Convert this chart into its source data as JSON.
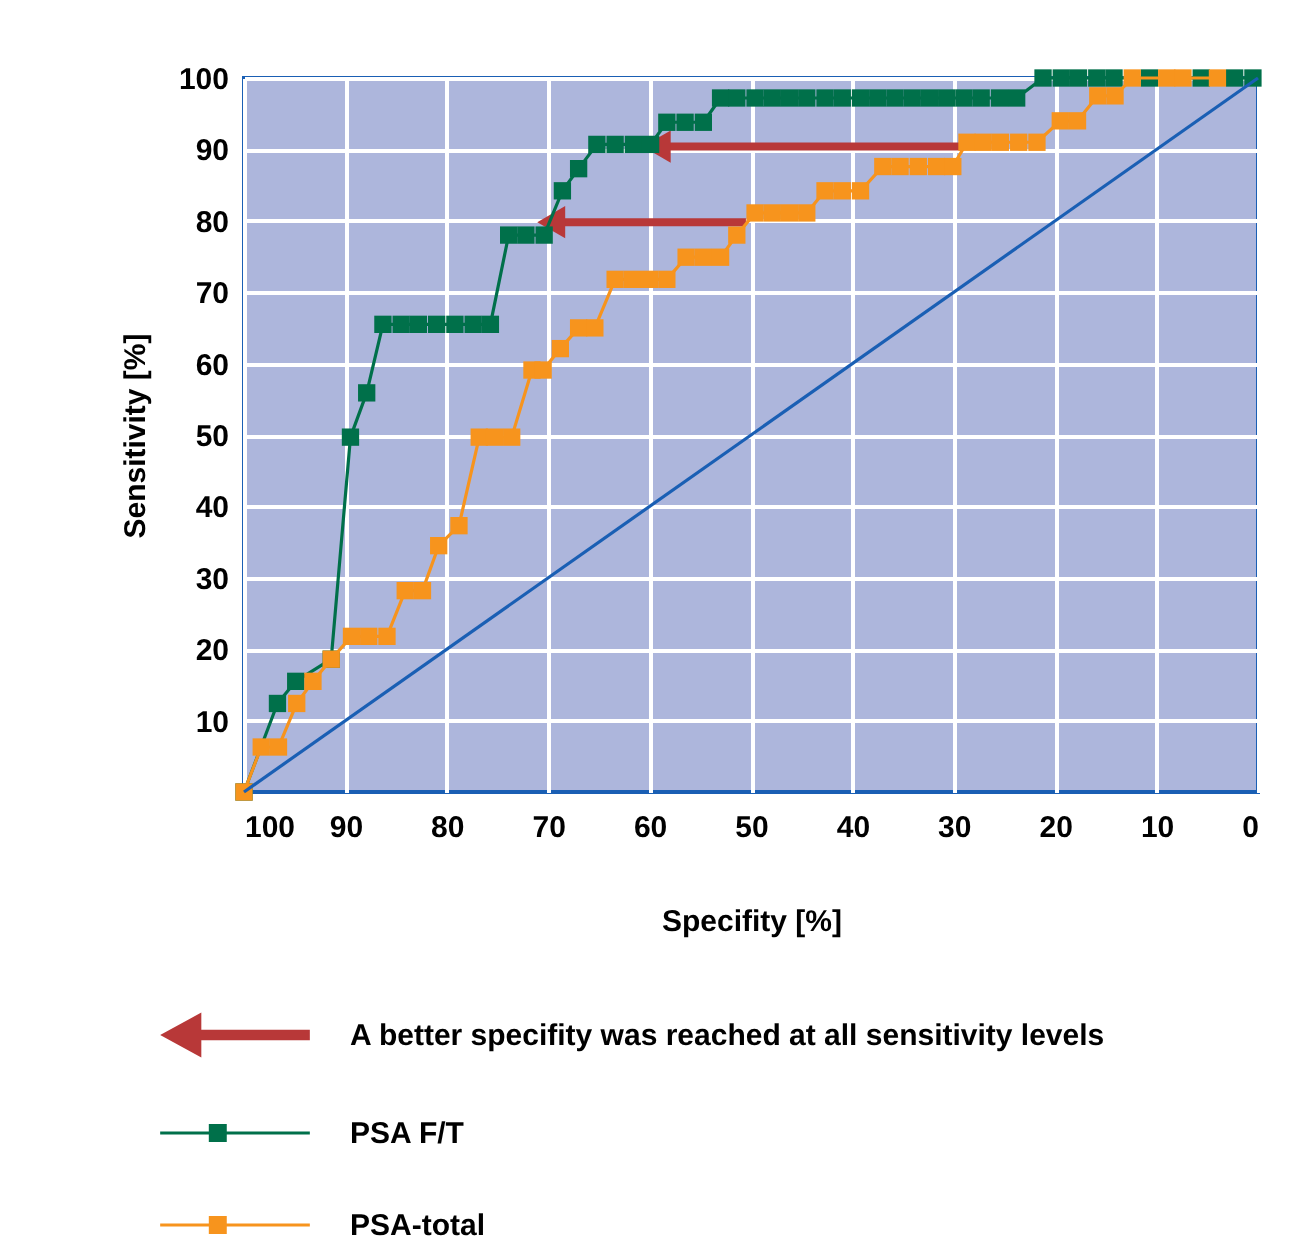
{
  "chart_data": {
    "type": "line",
    "xlabel": "Specifity [%]",
    "ylabel": "Sensitivity [%]",
    "xlim": [
      100,
      0
    ],
    "xticks": [
      100,
      90,
      80,
      70,
      60,
      50,
      40,
      30,
      20,
      10,
      0
    ],
    "ylim": [
      0,
      100
    ],
    "yticks": [
      10,
      20,
      30,
      40,
      50,
      60,
      70,
      80,
      90,
      100
    ],
    "grid": true,
    "legend": "bottom",
    "series": [
      {
        "name": "A better specifity was reached at all sensitivity levels",
        "marker": "triangle",
        "color": "#b83838",
        "x": [
          29.0,
          59.3
        ],
        "values": [
          90.4,
          90.4
        ]
      },
      {
        "marker": "triangle",
        "color": "#b83838",
        "x": [
          50.5,
          69.7
        ],
        "values": [
          79.8,
          79.8
        ]
      },
      {
        "name": "PSA F/T",
        "marker": "square",
        "color": "#00704a",
        "x": [
          100,
          96.7,
          94.9,
          91.4,
          89.5,
          87.9,
          86.3,
          84.5,
          82.8,
          81.0,
          79.2,
          77.4,
          75.7,
          73.9,
          72.2,
          70.4,
          68.6,
          67.0,
          65.2,
          63.4,
          61.6,
          59.9,
          58.3,
          56.5,
          54.7,
          53.0,
          51.4,
          49.6,
          47.9,
          46.2,
          44.5,
          42.7,
          41.0,
          39.2,
          37.5,
          35.8,
          34.1,
          32.4,
          30.7,
          29.0,
          27.3,
          25.5,
          23.8,
          21.2,
          19.4,
          17.7,
          15.9,
          14.2,
          10.7,
          5.6,
          2.3,
          0.5
        ],
        "values": [
          0,
          12.4,
          15.5,
          18.6,
          49.7,
          55.9,
          65.5,
          65.5,
          65.5,
          65.5,
          65.5,
          65.5,
          65.5,
          78.0,
          78.0,
          78.0,
          84.2,
          87.3,
          90.7,
          90.7,
          90.7,
          90.7,
          93.8,
          93.8,
          93.8,
          97.2,
          97.2,
          97.2,
          97.2,
          97.2,
          97.2,
          97.2,
          97.2,
          97.2,
          97.2,
          97.2,
          97.2,
          97.2,
          97.2,
          97.2,
          97.2,
          97.2,
          97.2,
          100,
          100,
          100,
          100,
          100,
          100,
          100,
          100,
          100
        ]
      },
      {
        "name": "PSA-total",
        "marker": "square",
        "color": "#f7941d",
        "x": [
          100,
          98.3,
          96.6,
          94.8,
          93.2,
          91.4,
          89.4,
          87.7,
          85.9,
          84.1,
          82.4,
          80.8,
          78.8,
          76.8,
          75.3,
          73.6,
          71.6,
          70.5,
          68.8,
          67.0,
          65.4,
          63.4,
          61.7,
          60.0,
          58.3,
          56.4,
          54.7,
          53.0,
          51.4,
          49.6,
          47.9,
          46.2,
          44.5,
          42.7,
          41.0,
          39.2,
          37.0,
          35.3,
          33.5,
          31.7,
          30.1,
          28.7,
          27.1,
          25.4,
          23.6,
          21.8,
          19.5,
          17.8,
          15.8,
          14.1,
          12.4,
          9.0,
          7.4,
          4.0
        ],
        "values": [
          0,
          6.3,
          6.3,
          12.4,
          15.5,
          18.6,
          21.8,
          21.8,
          21.8,
          28.2,
          28.2,
          34.5,
          37.3,
          49.7,
          49.7,
          49.7,
          59.1,
          59.1,
          62.1,
          65.0,
          65.0,
          71.8,
          71.8,
          71.8,
          71.8,
          74.9,
          74.9,
          74.9,
          78.0,
          81.1,
          81.1,
          81.1,
          81.1,
          84.2,
          84.2,
          84.2,
          87.6,
          87.6,
          87.6,
          87.6,
          87.6,
          91.0,
          91.0,
          91.0,
          91.0,
          91.0,
          94.0,
          94.0,
          97.5,
          97.5,
          100,
          100,
          100,
          100
        ]
      },
      {
        "marker": "none",
        "color": "#1a5fb4",
        "x": [
          100,
          0
        ],
        "values": [
          0,
          100
        ]
      }
    ]
  }
}
